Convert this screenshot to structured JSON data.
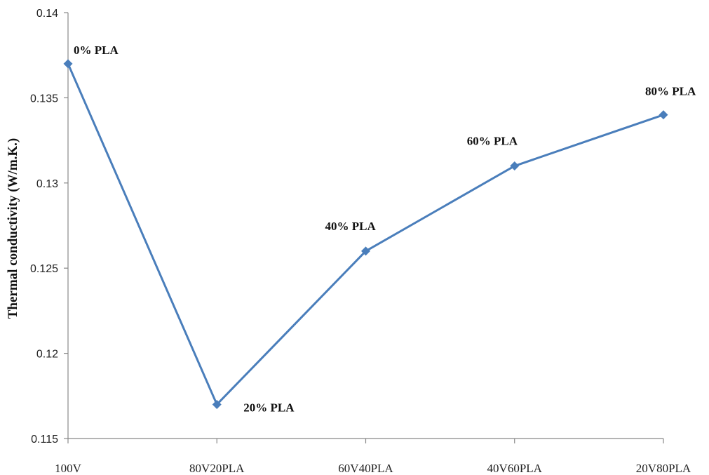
{
  "chart_data": {
    "type": "line",
    "title": "",
    "xlabel": "",
    "ylabel": "Thermal conductivity (W/m.K.)",
    "categories": [
      "100V",
      "80V20PLA",
      "60V40PLA",
      "40V60PLA",
      "20V80PLA"
    ],
    "series": [
      {
        "values": [
          0.137,
          0.117,
          0.126,
          0.131,
          0.134
        ],
        "color": "#4a7ebb",
        "marker": "diamond"
      }
    ],
    "data_labels": [
      "0% PLA",
      "20% PLA",
      "40% PLA",
      "60% PLA",
      "80% PLA"
    ],
    "ylim": [
      0.115,
      0.14
    ],
    "yticks": [
      0.115,
      0.12,
      0.125,
      0.13,
      0.135,
      0.14
    ],
    "ytick_labels": [
      "0.115",
      "0.12",
      "0.125",
      "0.13",
      "0.135",
      "0.14"
    ],
    "grid": false,
    "legend": "none"
  }
}
